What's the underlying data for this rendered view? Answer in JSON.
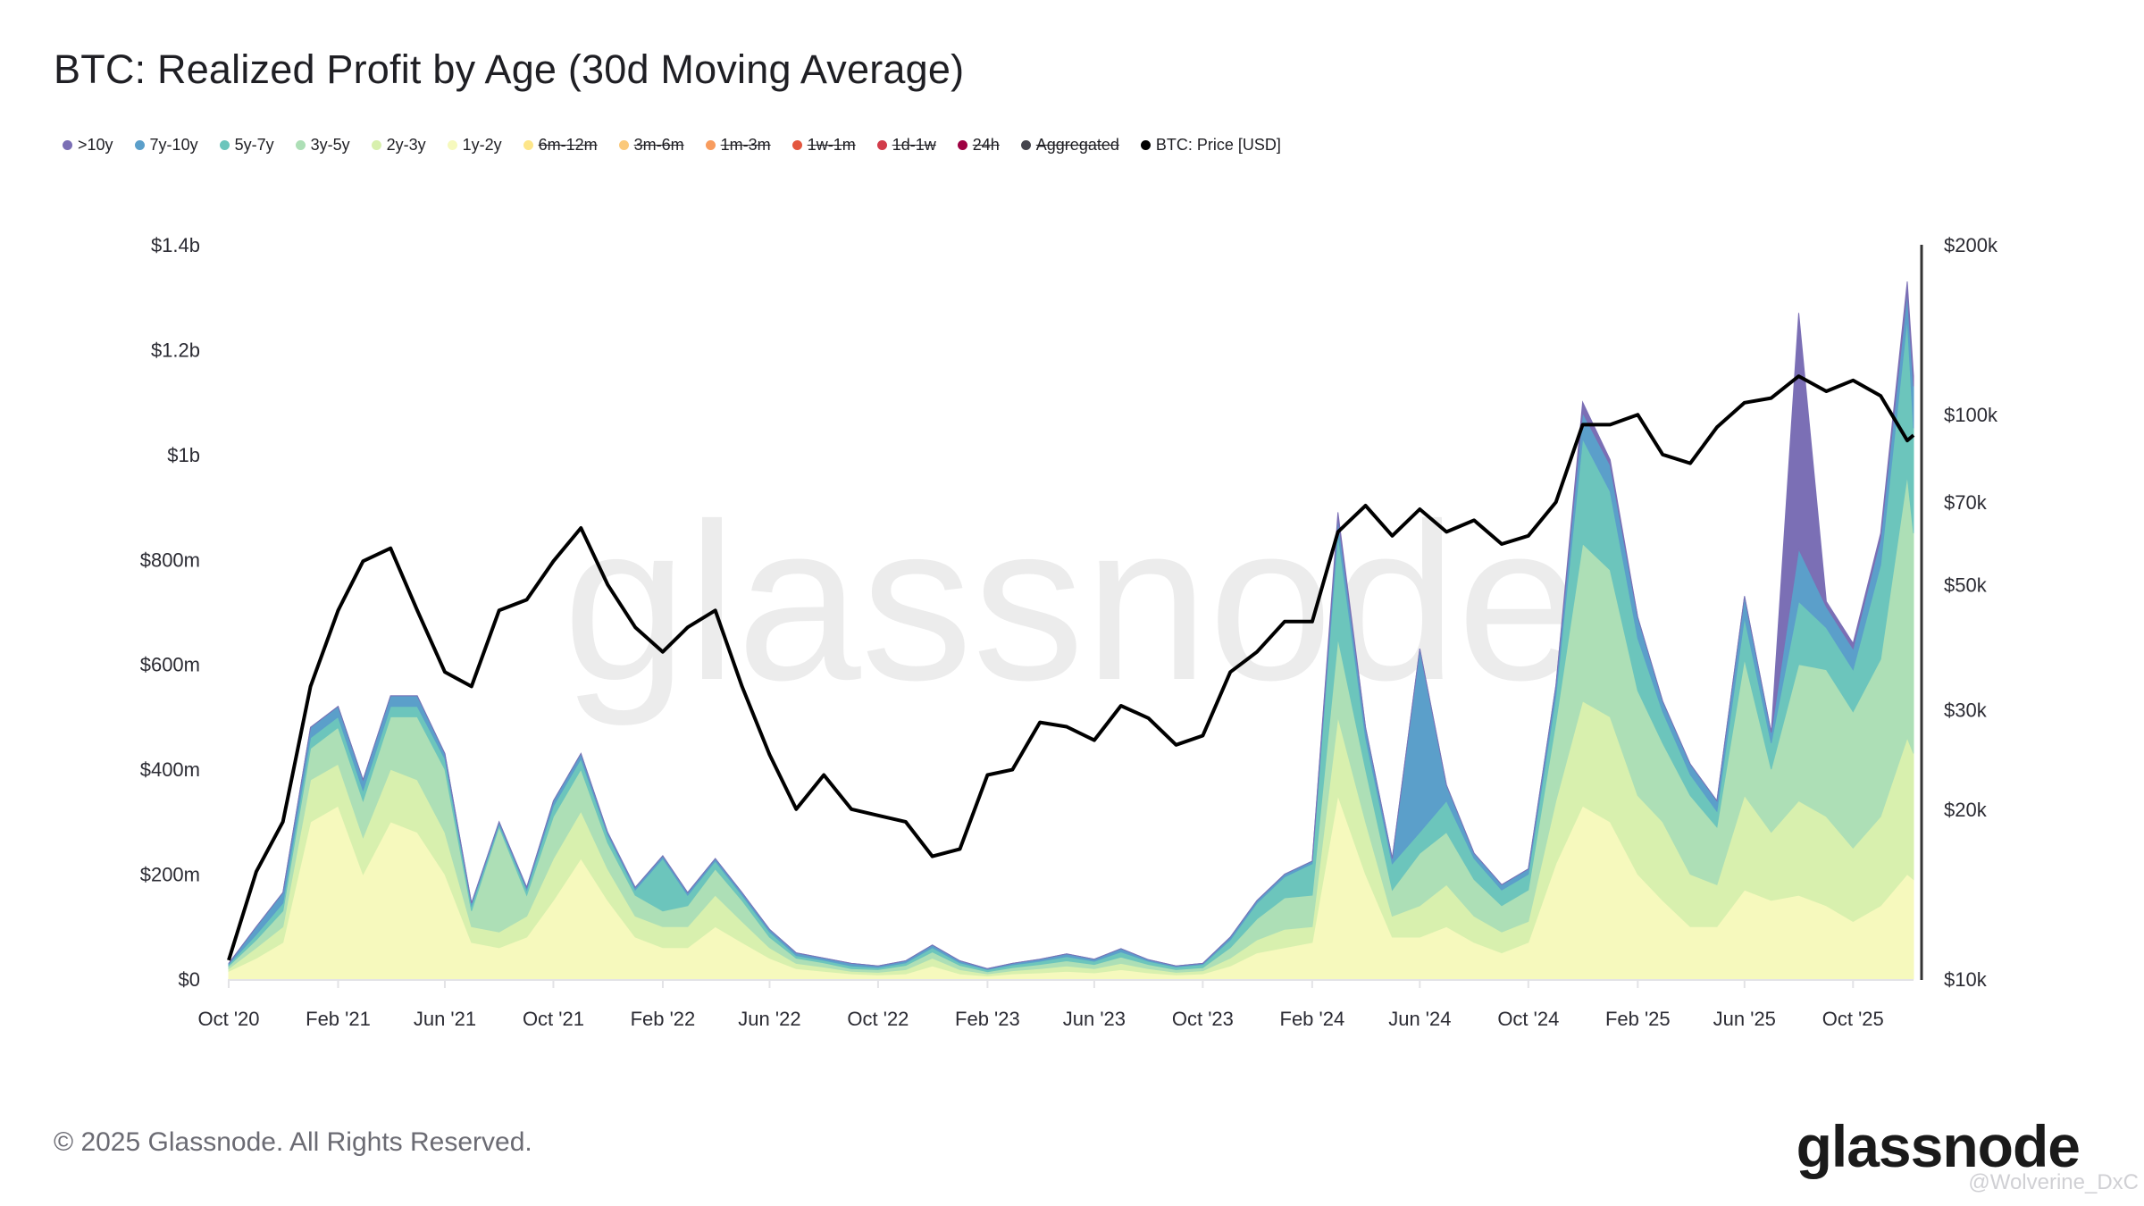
{
  "title": "BTC: Realized Profit by Age (30d Moving Average)",
  "legend": [
    {
      "label": ">10y",
      "color": "#7b6fb5",
      "visible": true
    },
    {
      "label": "7y-10y",
      "color": "#5b9fca",
      "visible": true
    },
    {
      "label": "5y-7y",
      "color": "#6cc5bc",
      "visible": true
    },
    {
      "label": "3y-5y",
      "color": "#addfb6",
      "visible": true
    },
    {
      "label": "2y-3y",
      "color": "#d8f0ae",
      "visible": true
    },
    {
      "label": "1y-2y",
      "color": "#f6f9bd",
      "visible": true
    },
    {
      "label": "6m-12m",
      "color": "#fde68a",
      "visible": false
    },
    {
      "label": "3m-6m",
      "color": "#fbc97a",
      "visible": false
    },
    {
      "label": "1m-3m",
      "color": "#f89c5e",
      "visible": false
    },
    {
      "label": "1w-1m",
      "color": "#e3573f",
      "visible": false
    },
    {
      "label": "1d-1w",
      "color": "#d23c4a",
      "visible": false
    },
    {
      "label": "24h",
      "color": "#9e0142",
      "visible": false
    },
    {
      "label": "Aggregated",
      "color": "#45454d",
      "visible": false
    },
    {
      "label": "BTC: Price [USD]",
      "color": "#000000",
      "visible": true
    }
  ],
  "footer": "© 2025 Glassnode. All Rights Reserved.",
  "logo": "glassnode",
  "watermark": "glassnode",
  "handle": "@Wolverine_DxC",
  "chart_data": {
    "type": "area",
    "stacked": true,
    "title": "BTC: Realized Profit by Age (30d Moving Average)",
    "x_range": [
      "2020-10-01",
      "2025-12-08"
    ],
    "x_ticks": [
      "Oct '20",
      "Feb '21",
      "Jun '21",
      "Oct '21",
      "Feb '22",
      "Jun '22",
      "Oct '22",
      "Feb '23",
      "Jun '23",
      "Oct '23",
      "Feb '24",
      "Jun '24",
      "Oct '24",
      "Feb '25",
      "Jun '25",
      "Oct '25"
    ],
    "x_tick_dates": [
      "2020-10-01",
      "2021-02-01",
      "2021-06-01",
      "2021-10-01",
      "2022-02-01",
      "2022-06-01",
      "2022-10-01",
      "2023-02-01",
      "2023-06-01",
      "2023-10-01",
      "2024-02-01",
      "2024-06-01",
      "2024-10-01",
      "2025-02-01",
      "2025-06-01",
      "2025-10-01"
    ],
    "y_left": {
      "range": [
        0,
        1400000000
      ],
      "ticks": [
        0,
        200000000,
        400000000,
        600000000,
        800000000,
        1000000000,
        1200000000,
        1400000000
      ],
      "tick_labels": [
        "$0",
        "$200m",
        "$400m",
        "$600m",
        "$800m",
        "$1b",
        "$1.2b",
        "$1.4b"
      ]
    },
    "y_right": {
      "scale": "log",
      "range": [
        10000,
        200000
      ],
      "ticks": [
        10000,
        20000,
        30000,
        50000,
        70000,
        100000,
        200000
      ],
      "tick_labels": [
        "$10k",
        "$20k",
        "$30k",
        "$50k",
        "$70k",
        "$100k",
        "$200k"
      ]
    },
    "dates": [
      "2020-10-01",
      "2020-11-01",
      "2020-12-01",
      "2021-01-01",
      "2021-02-01",
      "2021-03-01",
      "2021-04-01",
      "2021-05-01",
      "2021-06-01",
      "2021-07-01",
      "2021-08-01",
      "2021-09-01",
      "2021-10-01",
      "2021-11-01",
      "2021-12-01",
      "2022-01-01",
      "2022-02-01",
      "2022-03-01",
      "2022-04-01",
      "2022-05-01",
      "2022-06-01",
      "2022-07-01",
      "2022-08-01",
      "2022-09-01",
      "2022-10-01",
      "2022-11-01",
      "2022-12-01",
      "2023-01-01",
      "2023-02-01",
      "2023-03-01",
      "2023-04-01",
      "2023-05-01",
      "2023-06-01",
      "2023-07-01",
      "2023-08-01",
      "2023-09-01",
      "2023-10-01",
      "2023-11-01",
      "2023-12-01",
      "2024-01-01",
      "2024-02-01",
      "2024-03-01",
      "2024-04-01",
      "2024-05-01",
      "2024-06-01",
      "2024-07-01",
      "2024-08-01",
      "2024-09-01",
      "2024-10-01",
      "2024-11-01",
      "2024-12-01",
      "2025-01-01",
      "2025-02-01",
      "2025-03-01",
      "2025-04-01",
      "2025-05-01",
      "2025-06-01",
      "2025-07-01",
      "2025-08-01",
      "2025-09-01",
      "2025-10-01",
      "2025-11-01",
      "2025-12-01",
      "2025-12-08"
    ],
    "series_unit": "USD millions",
    "series": [
      {
        "name": "1y-2y",
        "color": "#f6f9bd",
        "values": [
          15,
          40,
          70,
          300,
          330,
          200,
          300,
          280,
          200,
          70,
          60,
          80,
          150,
          230,
          150,
          80,
          60,
          60,
          100,
          70,
          40,
          20,
          15,
          10,
          8,
          10,
          25,
          10,
          6,
          10,
          12,
          15,
          12,
          18,
          12,
          8,
          10,
          25,
          50,
          60,
          70,
          350,
          200,
          80,
          80,
          100,
          70,
          50,
          70,
          220,
          330,
          300,
          200,
          150,
          100,
          100,
          170,
          150,
          160,
          140,
          110,
          140,
          200,
          190
        ]
      },
      {
        "name": "2y-3y",
        "color": "#d8f0ae",
        "values": [
          5,
          20,
          30,
          80,
          80,
          70,
          100,
          100,
          80,
          30,
          30,
          40,
          80,
          90,
          60,
          40,
          40,
          40,
          60,
          40,
          20,
          10,
          8,
          5,
          5,
          8,
          15,
          8,
          4,
          6,
          8,
          10,
          8,
          12,
          8,
          5,
          6,
          15,
          25,
          35,
          30,
          150,
          100,
          40,
          60,
          80,
          50,
          40,
          40,
          120,
          200,
          200,
          150,
          150,
          100,
          80,
          180,
          130,
          180,
          170,
          140,
          170,
          260,
          240
        ]
      },
      {
        "name": "3y-5y",
        "color": "#addfb6",
        "values": [
          5,
          15,
          30,
          60,
          70,
          70,
          100,
          120,
          120,
          30,
          200,
          40,
          80,
          80,
          50,
          40,
          30,
          40,
          50,
          40,
          20,
          10,
          8,
          5,
          5,
          8,
          12,
          8,
          4,
          6,
          8,
          10,
          8,
          12,
          8,
          5,
          6,
          20,
          40,
          60,
          60,
          150,
          100,
          50,
          100,
          100,
          70,
          50,
          60,
          150,
          300,
          280,
          200,
          150,
          150,
          110,
          260,
          120,
          260,
          280,
          260,
          300,
          500,
          420
        ]
      },
      {
        "name": "5y-7y",
        "color": "#6cc5bc",
        "values": [
          3,
          10,
          15,
          20,
          20,
          20,
          20,
          20,
          20,
          10,
          5,
          10,
          20,
          20,
          15,
          10,
          100,
          20,
          15,
          10,
          10,
          5,
          5,
          5,
          4,
          5,
          8,
          5,
          4,
          5,
          6,
          8,
          6,
          10,
          6,
          5,
          6,
          15,
          30,
          40,
          60,
          200,
          60,
          50,
          40,
          60,
          40,
          30,
          30,
          50,
          200,
          150,
          100,
          60,
          40,
          30,
          80,
          50,
          120,
          80,
          80,
          180,
          300,
          200
        ]
      },
      {
        "name": "7y-10y",
        "color": "#5b9fca",
        "values": [
          2,
          15,
          20,
          20,
          20,
          20,
          20,
          20,
          10,
          5,
          5,
          5,
          10,
          10,
          5,
          5,
          5,
          5,
          5,
          5,
          5,
          5,
          4,
          5,
          3,
          4,
          5,
          4,
          2,
          3,
          4,
          5,
          4,
          6,
          3,
          2,
          2,
          5,
          5,
          5,
          5,
          30,
          20,
          10,
          350,
          30,
          10,
          10,
          10,
          20,
          50,
          50,
          40,
          20,
          20,
          20,
          40,
          20,
          100,
          40,
          40,
          50,
          50,
          80
        ]
      },
      {
        "name": ">10y",
        "color": "#7b6fb5",
        "values": [
          0,
          0,
          0,
          0,
          0,
          0,
          0,
          0,
          0,
          0,
          0,
          0,
          0,
          0,
          0,
          0,
          0,
          0,
          0,
          0,
          0,
          0,
          0,
          0,
          0,
          0,
          0,
          0,
          0,
          0,
          0,
          0,
          0,
          0,
          0,
          0,
          0,
          0,
          0,
          0,
          0,
          10,
          0,
          0,
          0,
          0,
          0,
          0,
          0,
          0,
          20,
          10,
          0,
          0,
          0,
          0,
          0,
          0,
          450,
          10,
          10,
          10,
          20,
          20
        ]
      }
    ],
    "price": {
      "name": "BTC: Price [USD]",
      "color": "#000000",
      "values": [
        10800,
        15500,
        19000,
        33000,
        45000,
        55000,
        58000,
        45000,
        35000,
        33000,
        45000,
        47000,
        55000,
        63000,
        50000,
        42000,
        38000,
        42000,
        45000,
        33000,
        25000,
        20000,
        23000,
        20000,
        19500,
        19000,
        16500,
        17000,
        23000,
        23500,
        28500,
        28000,
        26500,
        30500,
        29000,
        26000,
        27000,
        35000,
        38000,
        43000,
        43000,
        62000,
        69000,
        61000,
        68000,
        62000,
        65000,
        59000,
        61000,
        70000,
        96000,
        96000,
        100000,
        85000,
        82000,
        95000,
        105000,
        107000,
        117000,
        110000,
        115000,
        108000,
        90000,
        92000
      ]
    },
    "grid": false,
    "legend_position": "top-left"
  }
}
